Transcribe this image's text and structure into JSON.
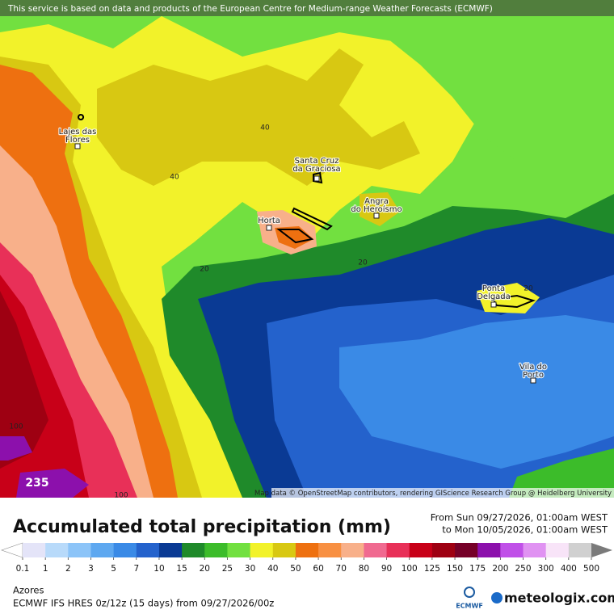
{
  "notice": "This service is based on data and products of the European Centre for Medium-range Weather Forecasts (ECMWF)",
  "map": {
    "places": [
      {
        "lines": [
          "Lajes das",
          "Flores"
        ]
      },
      {
        "lines": [
          "Santa Cruz",
          "da Graciosa"
        ]
      },
      {
        "lines": [
          "Horta"
        ]
      },
      {
        "lines": [
          "Angra",
          "do Heroísmo"
        ]
      },
      {
        "lines": [
          "Ponta",
          "Delgada"
        ]
      },
      {
        "lines": [
          "Vila do",
          "Porto"
        ]
      }
    ],
    "contour_labels": [
      "40",
      "40",
      "20",
      "20",
      "20",
      "100",
      "235",
      "100"
    ],
    "attribution": "Map data © OpenStreetMap contributors, rendering GIScience Research Group @ Heidelberg University"
  },
  "title": "Accumulated total precipitation (mm)",
  "period": {
    "from": "From Sun 09/27/2026, 01:00am WEST",
    "to": "to Mon 10/05/2026, 01:00am WEST"
  },
  "legend": {
    "ticks": [
      0.1,
      1,
      2,
      3,
      5,
      7,
      10,
      15,
      20,
      25,
      30,
      40,
      50,
      60,
      70,
      80,
      90,
      100,
      125,
      150,
      175,
      200,
      250,
      300,
      400,
      500
    ],
    "colors": [
      "#e4e4f8",
      "#b8dafa",
      "#8cc4f8",
      "#5ea8f0",
      "#3a8ae6",
      "#2462cc",
      "#0a3a94",
      "#1f8a2a",
      "#3cbc2a",
      "#72e040",
      "#f2f22a",
      "#d8c812",
      "#ee7010",
      "#f89042",
      "#f8b08a",
      "#f06a90",
      "#e83058",
      "#c80018",
      "#9e0012",
      "#760028",
      "#8c10ac",
      "#c050e8",
      "#e092f2",
      "#f8e4f8",
      "#d0d0d0"
    ],
    "below_color": "#ffffff",
    "above_color": "#7a7a7a"
  },
  "region": "Azores",
  "model": "ECMWF IFS HRES 0z/12z (15 days) from  09/27/2026/00z",
  "logos": {
    "left": "ECMWF",
    "right": "meteologix.com"
  }
}
